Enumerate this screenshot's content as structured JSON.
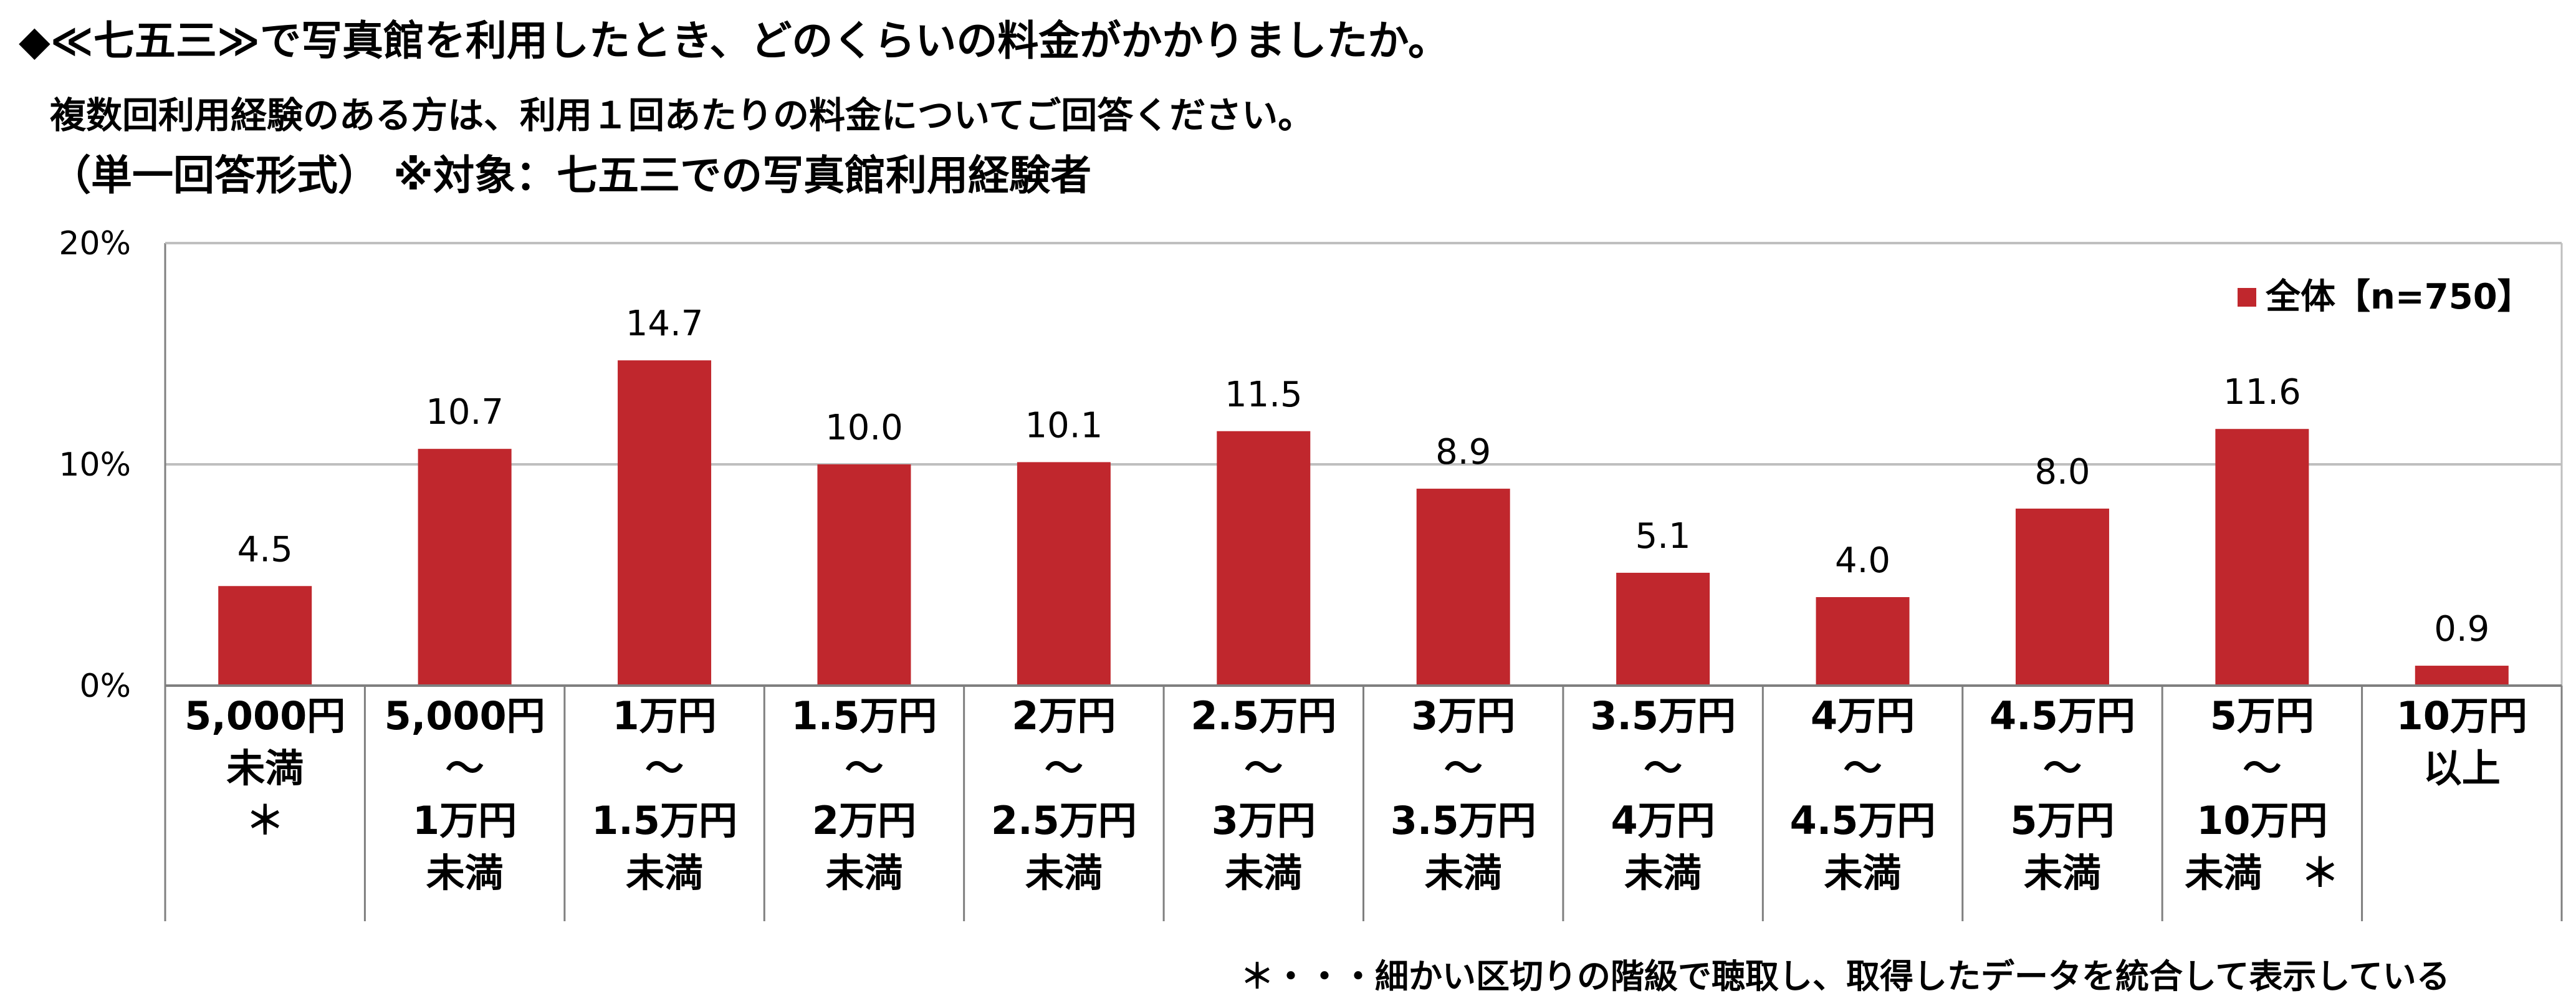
{
  "header": {
    "title": "◆≪七五三≫で写真館を利用したとき、どのくらいの料金がかかりましたか。",
    "subtitle": "複数回利用経験のある方は、利用１回あたりの料金についてご回答ください。",
    "condition": "（単一回答形式）  ※対象：七五三での写真館利用経験者"
  },
  "footnote": "＊・・・細かい区切りの階級で聴取し、取得したデータを統合して表示している",
  "chart_data": {
    "type": "bar",
    "categories": [
      [
        "5,000円",
        "未満",
        "＊"
      ],
      [
        "5,000円",
        "～",
        "1万円",
        "未満"
      ],
      [
        "1万円",
        "～",
        "1.5万円",
        "未満"
      ],
      [
        "1.5万円",
        "～",
        "2万円",
        "未満"
      ],
      [
        "2万円",
        "～",
        "2.5万円",
        "未満"
      ],
      [
        "2.5万円",
        "～",
        "3万円",
        "未満"
      ],
      [
        "3万円",
        "～",
        "3.5万円",
        "未満"
      ],
      [
        "3.5万円",
        "～",
        "4万円",
        "未満"
      ],
      [
        "4万円",
        "～",
        "4.5万円",
        "未満"
      ],
      [
        "4.5万円",
        "～",
        "5万円",
        "未満"
      ],
      [
        "5万円",
        "～",
        "10万円",
        "未満　＊"
      ],
      [
        "10万円",
        "以上"
      ]
    ],
    "series": [
      {
        "name": "全体【n=750】",
        "values": [
          4.5,
          10.7,
          14.7,
          10.0,
          10.1,
          11.5,
          8.9,
          5.1,
          4.0,
          8.0,
          11.6,
          0.9
        ],
        "labels": [
          "4.5",
          "10.7",
          "14.7",
          "10.0",
          "10.1",
          "11.5",
          "8.9",
          "5.1",
          "4.0",
          "8.0",
          "11.6",
          "0.9"
        ],
        "color": "#C0272D"
      }
    ],
    "y_ticks": [
      "0%",
      "10%",
      "20%"
    ],
    "ylim": [
      0,
      20
    ],
    "grid": true,
    "legend_position": "top-right"
  }
}
